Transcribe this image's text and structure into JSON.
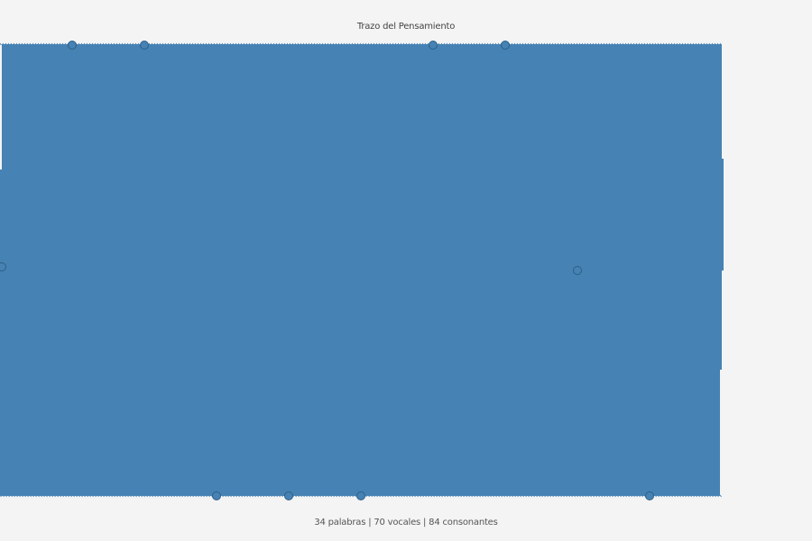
{
  "header": {
    "title": "Trazo del Pensamiento"
  },
  "footer": {
    "stats": "34 palabras | 70 vocales | 84 consonantes"
  },
  "colors": {
    "background": "#f4f4f4",
    "fill": "#4682b4",
    "stroke": "#2e5f86"
  }
}
